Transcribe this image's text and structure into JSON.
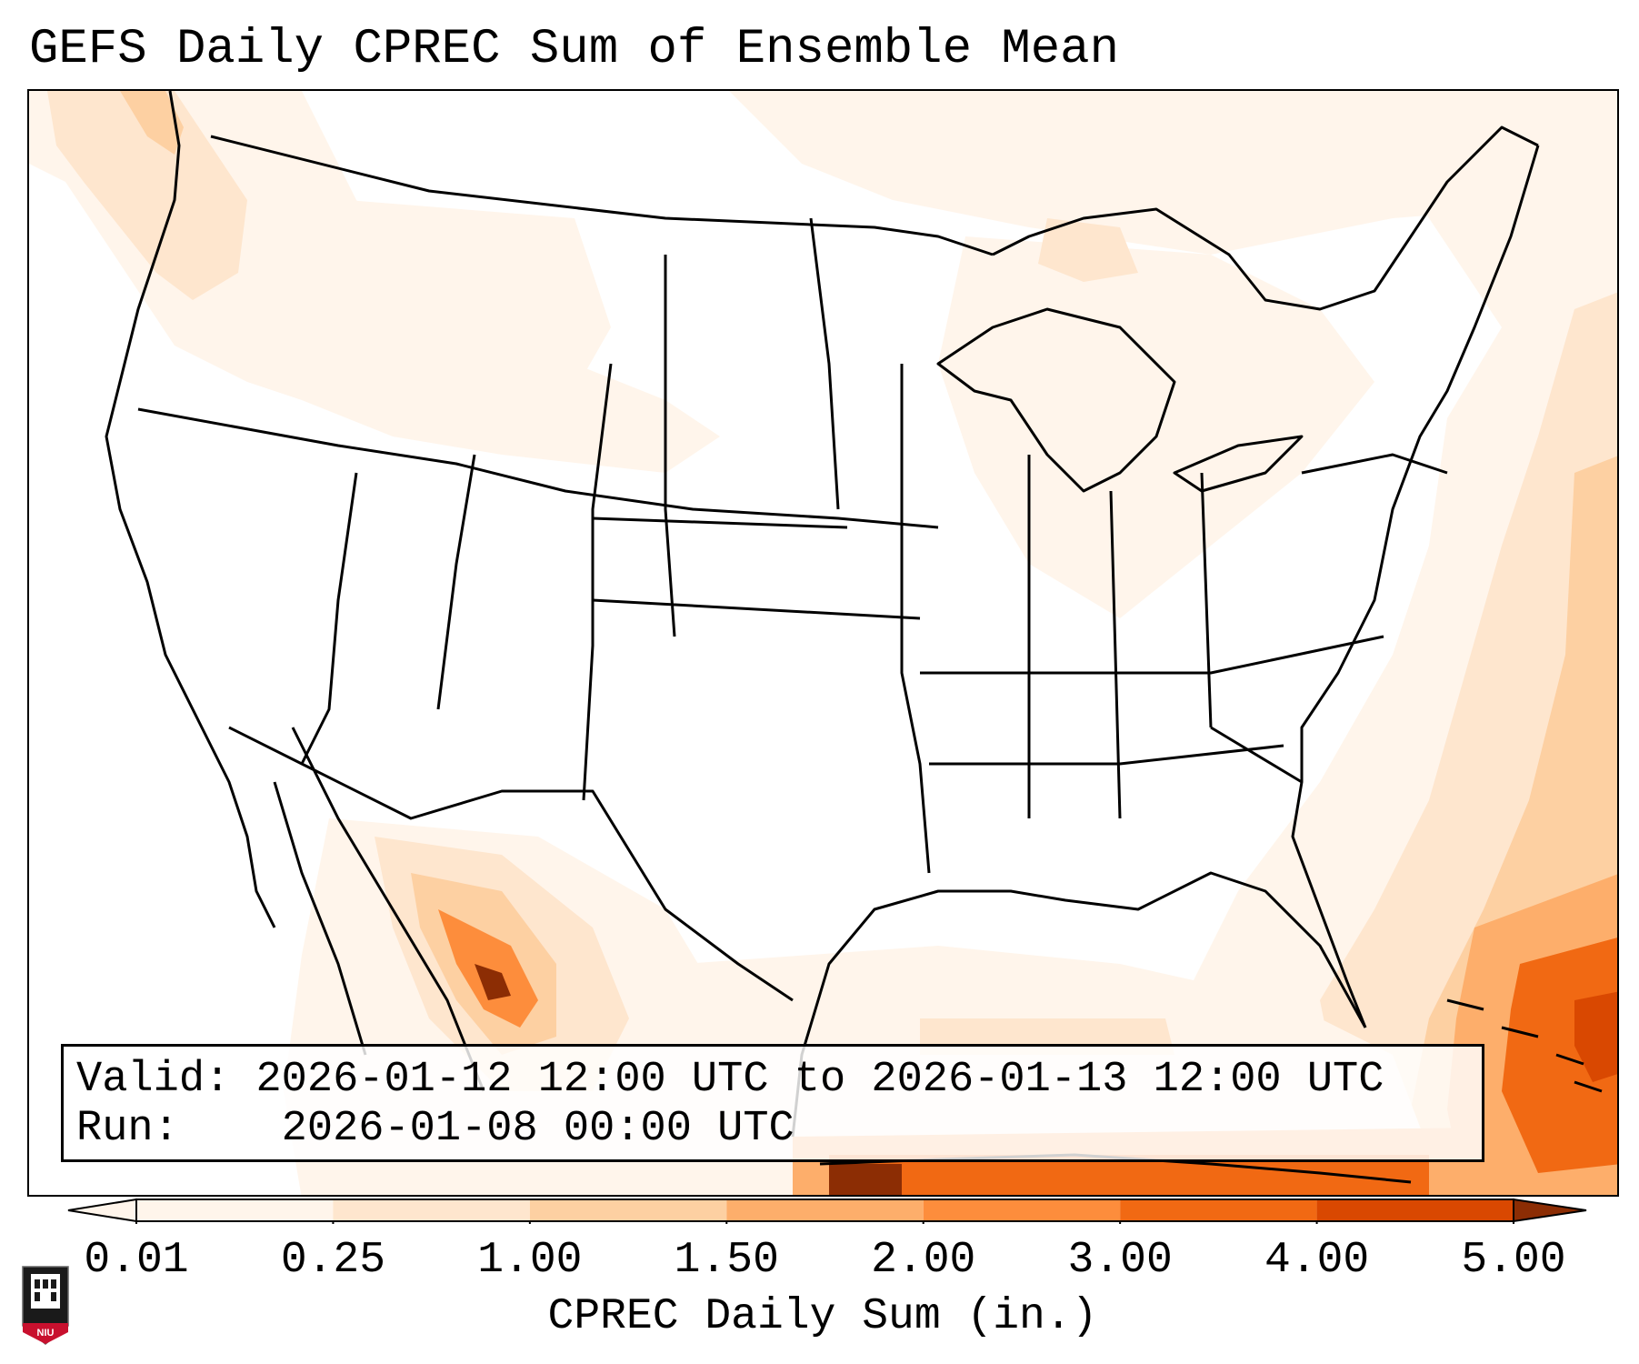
{
  "title": "GEFS Daily CPREC Sum of Ensemble Mean",
  "info": {
    "valid_label": "Valid:",
    "valid_text": "2026-01-12 12:00 UTC to 2026-01-13 12:00 UTC",
    "run_label": "Run:",
    "run_text": "2026-01-08 00:00 UTC"
  },
  "colorbar": {
    "label": "CPREC Daily Sum (in.)",
    "ticks": [
      "0.01",
      "0.25",
      "1.00",
      "1.50",
      "2.00",
      "3.00",
      "4.00",
      "5.00"
    ],
    "colors": [
      "#fff5eb",
      "#fee6ce",
      "#fdd0a2",
      "#fdae6b",
      "#fd8d3c",
      "#f16913",
      "#d94801",
      "#8c2d04"
    ],
    "extend": "both"
  },
  "logo": {
    "text": "NIU",
    "color": "#c8102e"
  }
}
